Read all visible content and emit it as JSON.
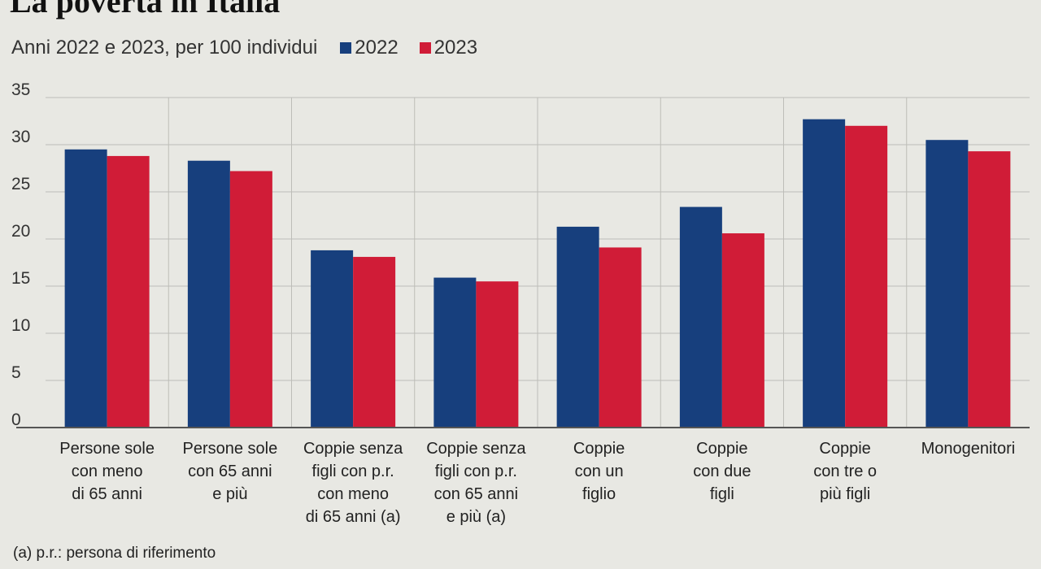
{
  "title": "La povertà in Italia",
  "subtitle": "Anni 2022 e 2023, per 100 individui",
  "colors": {
    "series_2022": "#173f7d",
    "series_2023": "#d01c37",
    "background": "#e8e8e3",
    "grid": "#bdbdb8",
    "axis": "#555555"
  },
  "footnote": "(a) p.r.: persona di riferimento",
  "chart_data": {
    "type": "bar",
    "title": "La povertà in Italia",
    "subtitle": "Anni 2022 e 2023, per 100 individui",
    "categories": [
      [
        "Persone sole",
        "con meno",
        "di 65 anni"
      ],
      [
        "Persone sole",
        "con 65 anni",
        "e più"
      ],
      [
        "Coppie senza",
        "figli con p.r.",
        "con meno",
        "di 65 anni (a)"
      ],
      [
        "Coppie senza",
        "figli con p.r.",
        "con 65 anni",
        "e più (a)"
      ],
      [
        "Coppie",
        "con un",
        "figlio"
      ],
      [
        "Coppie",
        "con due",
        "figli"
      ],
      [
        "Coppie",
        "con tre o",
        "più figli"
      ],
      [
        "Monogenitori"
      ]
    ],
    "series": [
      {
        "name": "2022",
        "values": [
          29.5,
          28.3,
          18.8,
          15.9,
          21.3,
          23.4,
          32.7,
          30.5
        ]
      },
      {
        "name": "2023",
        "values": [
          28.8,
          27.2,
          18.1,
          15.5,
          19.1,
          20.6,
          32.0,
          29.3
        ]
      }
    ],
    "ylim": [
      0,
      35
    ],
    "yticks": [
      0,
      5,
      10,
      15,
      20,
      25,
      30,
      35
    ],
    "grid": true,
    "legend_position": "top"
  }
}
